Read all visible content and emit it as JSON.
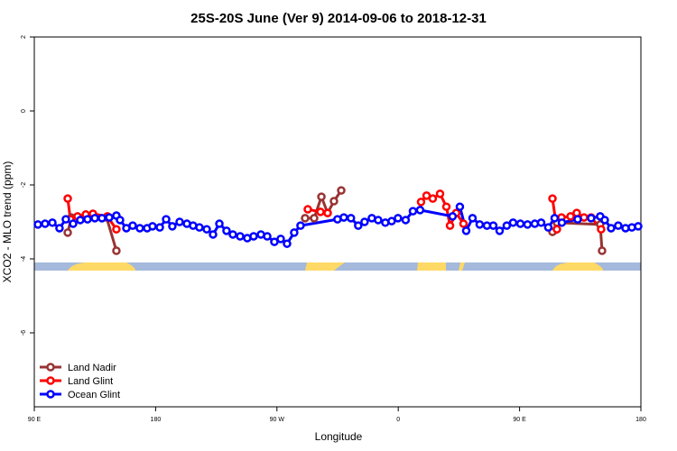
{
  "chart_data": {
    "type": "line",
    "title": "25S-20S June (Ver 9)   2014-09-06 to 2018-12-31",
    "x_label": "Longitude",
    "y_label": "XCO2 - MLO trend (ppm)",
    "xlim": [
      90,
      540
    ],
    "xticks": [
      {
        "value": 90,
        "label": "90 E"
      },
      180,
      {
        "value": 270,
        "label": "90 W"
      },
      {
        "value": 360,
        "label": "0"
      },
      {
        "value": 450,
        "label": "90 E"
      },
      {
        "value": 540,
        "label": "180"
      }
    ],
    "ylim": [
      -8,
      2
    ],
    "yticks": [
      2,
      0,
      -2,
      -4,
      -6
    ],
    "legend": "bottomleft",
    "series": [
      {
        "name": "Land Nadir",
        "color": "#993333",
        "x": [
          114.8,
          117.5,
          143.6,
          150.9,
          null,
          290.9,
          297.6,
          303.0,
          307.6,
          312.3,
          317.7,
          null,
          474.4,
          477.7,
          509.8,
          511.2
        ],
        "values": [
          -3.29,
          -2.88,
          -2.88,
          -3.78,
          null,
          -2.9,
          -2.9,
          -2.32,
          -2.76,
          -2.44,
          -2.15,
          null,
          -3.27,
          -3.02,
          -3.07,
          -3.78
        ]
      },
      {
        "name": "Land Glint",
        "color": "#ff0000",
        "x": [
          114.8,
          116.8,
          122.1,
          128.2,
          133.5,
          144.2,
          150.9,
          null,
          292.9,
          302.3,
          307.6,
          null,
          376.9,
          381.0,
          385.6,
          391.0,
          395.7,
          398.4,
          403.0,
          408.4,
          null,
          474.4,
          477.7,
          481.1,
          487.8,
          492.4,
          497.8,
          503.1,
          510.5
        ],
        "values": [
          -2.37,
          -2.93,
          -2.85,
          -2.8,
          -2.78,
          -2.85,
          -3.2,
          null,
          -2.66,
          -2.73,
          -2.76,
          null,
          -2.46,
          -2.29,
          -2.37,
          -2.24,
          -2.59,
          -3.1,
          -2.76,
          -3.05,
          null,
          -2.37,
          -3.2,
          -2.88,
          -2.85,
          -2.76,
          -2.88,
          -2.88,
          -3.2
        ]
      },
      {
        "name": "Ocean Glint",
        "color": "#0000ff",
        "x": [
          92.7,
          98.0,
          103.4,
          108.7,
          113.4,
          118.8,
          124.1,
          129.5,
          134.9,
          140.2,
          145.6,
          150.9,
          153.6,
          158.3,
          163.0,
          168.3,
          173.7,
          177.7,
          183.1,
          187.8,
          192.4,
          197.8,
          203.2,
          207.8,
          212.5,
          217.9,
          222.6,
          227.3,
          232.6,
          237.3,
          242.7,
          248.0,
          252.7,
          258.1,
          262.8,
          268.1,
          272.8,
          277.5,
          282.8,
          287.5,
          314.9,
          319.6,
          324.9,
          330.3,
          335.0,
          340.4,
          345.1,
          350.4,
          355.1,
          359.8,
          365.5,
          370.9,
          376.2,
          400.3,
          405.7,
          410.4,
          415.1,
          420.4,
          425.8,
          430.5,
          435.2,
          440.5,
          445.2,
          450.6,
          455.9,
          461.3,
          466.0,
          471.3,
          476.0,
          481.4,
          493.1,
          503.1,
          509.8,
          513.2,
          517.9,
          523.2,
          528.6,
          533.3,
          538.0
        ],
        "values": [
          -3.07,
          -3.05,
          -3.02,
          -3.17,
          -2.93,
          -3.05,
          -2.95,
          -2.93,
          -2.9,
          -2.9,
          -2.88,
          -2.83,
          -2.95,
          -3.17,
          -3.1,
          -3.17,
          -3.17,
          -3.12,
          -3.15,
          -2.93,
          -3.12,
          -3.0,
          -3.05,
          -3.1,
          -3.15,
          -3.2,
          -3.34,
          -3.05,
          -3.24,
          -3.34,
          -3.39,
          -3.44,
          -3.39,
          -3.34,
          -3.39,
          -3.54,
          -3.46,
          -3.59,
          -3.29,
          -3.1,
          -2.93,
          -2.88,
          -2.9,
          -3.1,
          -3.0,
          -2.9,
          -2.95,
          -3.02,
          -2.98,
          -2.9,
          -2.95,
          -2.71,
          -2.68,
          -2.85,
          -2.59,
          -3.24,
          -2.9,
          -3.07,
          -3.1,
          -3.1,
          -3.24,
          -3.1,
          -3.02,
          -3.05,
          -3.07,
          -3.05,
          -3.02,
          -3.15,
          -2.9,
          -3.02,
          -2.93,
          -2.9,
          -2.85,
          -2.95,
          -3.17,
          -3.1,
          -3.17,
          -3.15,
          -3.12
        ]
      }
    ]
  }
}
